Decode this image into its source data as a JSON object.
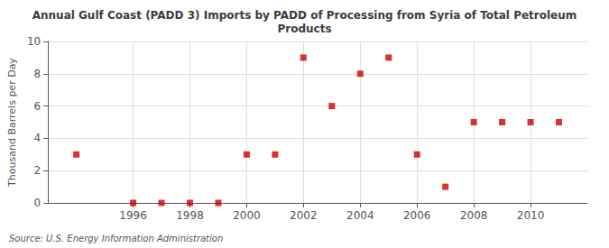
{
  "chart_data": {
    "type": "scatter",
    "title": "Annual Gulf Coast (PADD 3) Imports by PADD of Processing from Syria of Total Petroleum\nProducts",
    "ylabel": "Thousand Barrels per Day",
    "annotation": "Source: U.S. Energy Information Administration",
    "x": [
      1994,
      1996,
      1997,
      1998,
      1999,
      2000,
      2001,
      2002,
      2003,
      2004,
      2005,
      2006,
      2007,
      2008,
      2009,
      2010,
      2011
    ],
    "values": [
      3,
      0,
      0,
      0,
      0,
      3,
      3,
      9,
      6,
      8,
      9,
      3,
      1,
      5,
      5,
      5,
      5
    ],
    "color": "#cc0000",
    "marker": "square",
    "xlim": [
      1993.0,
      2012.0
    ],
    "xticks": [
      1996,
      1998,
      2000,
      2002,
      2004,
      2006,
      2008,
      2010
    ],
    "ylim": [
      0,
      10
    ],
    "yticks": [
      0,
      2,
      4,
      6,
      8,
      10
    ],
    "grid": true
  }
}
